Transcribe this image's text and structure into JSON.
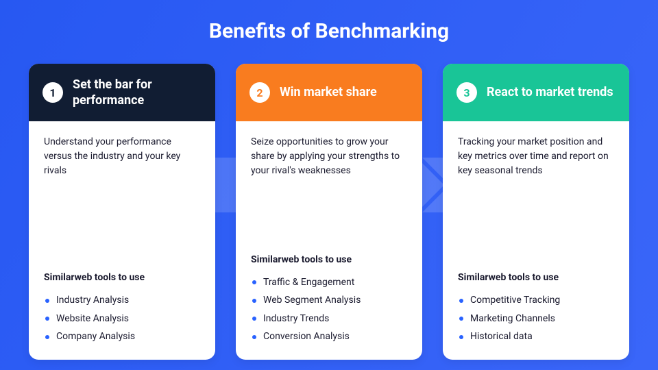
{
  "background_gradient": [
    "#2758f2",
    "#3a66f9"
  ],
  "title": "Benefits of Benchmarking",
  "title_color": "#ffffff",
  "title_fontsize": 30,
  "card_background": "#ffffff",
  "card_border_radius": 14,
  "arrow_bg_color": "#ffffff",
  "arrow_bg_opacity": 0.15,
  "tools_heading": "Similarweb tools to use",
  "cards": [
    {
      "number": "1",
      "title": "Set the bar for performance",
      "header_color": "#111d33",
      "badge_text_color": "#111d33",
      "bullet_color": "#2962ff",
      "description": "Understand your performance versus the industry and your key rivals",
      "tools": [
        "Industry Analysis",
        "Website Analysis",
        "Company Analysis"
      ]
    },
    {
      "number": "2",
      "title": "Win market share",
      "header_color": "#f97c1f",
      "badge_text_color": "#f97c1f",
      "bullet_color": "#2962ff",
      "description": "Seize opportunities to grow your share by applying your strengths to your rival's weaknesses",
      "tools": [
        "Traffic & Engagement",
        "Web Segment Analysis",
        "Industry Trends",
        "Conversion Analysis"
      ]
    },
    {
      "number": "3",
      "title": "React to market trends",
      "header_color": "#19c597",
      "badge_text_color": "#19c597",
      "bullet_color": "#2962ff",
      "description": "Tracking your market position and key metrics over time and report on key seasonal trends",
      "tools": [
        "Competitive Tracking",
        "Marketing Channels",
        "Historical data"
      ]
    }
  ]
}
